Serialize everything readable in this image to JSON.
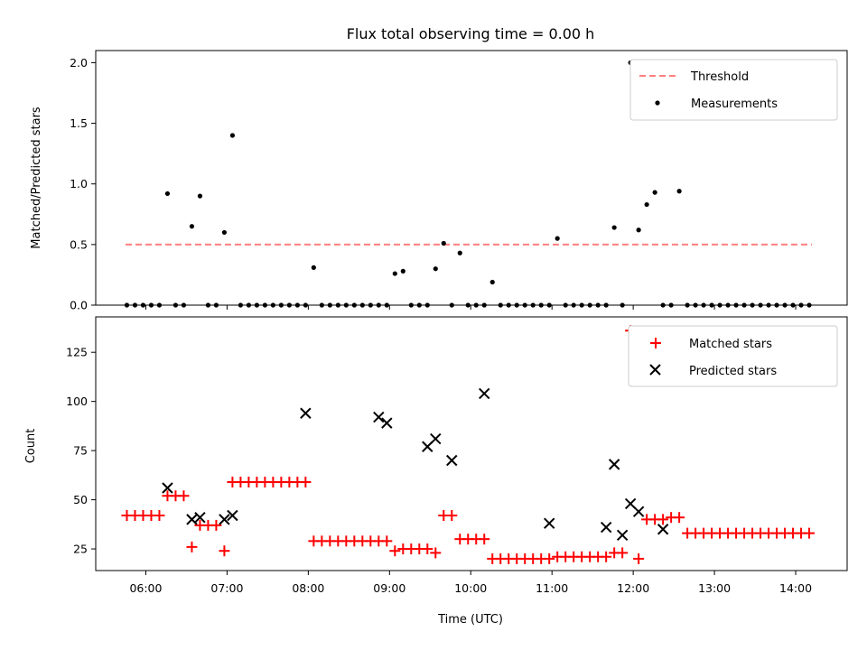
{
  "chart_data": [
    {
      "type": "scatter",
      "title": "Flux total observing time = 0.00 h",
      "xlabel": "",
      "ylabel": "Matched/Predicted stars",
      "ylim": [
        0,
        2.1
      ],
      "yticks": [
        "0.0",
        "0.5",
        "1.0",
        "1.5",
        "2.0"
      ],
      "xticks_shown": false,
      "grid": false,
      "legend_placement": "top-right",
      "threshold": {
        "name": "Threshold",
        "value": 0.5,
        "x_start": "05:45",
        "x_end": "14:12",
        "color": "#ff7f7f"
      },
      "series": [
        {
          "name": "Measurements",
          "color": "#000000",
          "marker": "dot",
          "x": [
            "05:46",
            "05:52",
            "05:58",
            "06:04",
            "06:10",
            "06:16",
            "06:22",
            "06:28",
            "06:34",
            "06:40",
            "06:46",
            "06:52",
            "06:58",
            "07:04",
            "07:10",
            "07:16",
            "07:22",
            "07:28",
            "07:34",
            "07:40",
            "07:46",
            "07:52",
            "07:58",
            "08:04",
            "08:10",
            "08:16",
            "08:22",
            "08:28",
            "08:34",
            "08:40",
            "08:46",
            "08:52",
            "08:58",
            "09:04",
            "09:10",
            "09:16",
            "09:22",
            "09:28",
            "09:34",
            "09:40",
            "09:46",
            "09:52",
            "09:58",
            "10:04",
            "10:10",
            "10:16",
            "10:22",
            "10:28",
            "10:34",
            "10:40",
            "10:46",
            "10:52",
            "10:58",
            "11:04",
            "11:10",
            "11:16",
            "11:22",
            "11:28",
            "11:34",
            "11:40",
            "11:46",
            "11:52",
            "11:58",
            "12:04",
            "12:10",
            "12:16",
            "12:22",
            "12:28",
            "12:34",
            "12:40",
            "12:46",
            "12:52",
            "12:58",
            "13:04",
            "13:10",
            "13:16",
            "13:22",
            "13:28",
            "13:34",
            "13:40",
            "13:46",
            "13:52",
            "13:58",
            "14:04",
            "14:10"
          ],
          "y": [
            0,
            0,
            0,
            0,
            0,
            0.92,
            0,
            0,
            0.65,
            0.9,
            0,
            0,
            0.6,
            1.4,
            0,
            0,
            0,
            0,
            0,
            0,
            0,
            0,
            0,
            0.31,
            0,
            0,
            0,
            0,
            0,
            0,
            0,
            0,
            0,
            0.26,
            0.28,
            0,
            0,
            0,
            0.3,
            0.51,
            0,
            0.43,
            0,
            0,
            0,
            0.19,
            0,
            0,
            0,
            0,
            0,
            0,
            0,
            0.55,
            0,
            0,
            0,
            0,
            0,
            0,
            0.64,
            0,
            2.0,
            0.62,
            0.83,
            0.93,
            0,
            0,
            0.94,
            0,
            0,
            0,
            0,
            0,
            0,
            0,
            0,
            0,
            0,
            0,
            0,
            0,
            0,
            0,
            0
          ]
        }
      ]
    },
    {
      "type": "scatter",
      "title": "",
      "xlabel": "Time (UTC)",
      "ylabel": "Count",
      "ylim": [
        14,
        143
      ],
      "yticks": [
        "25",
        "50",
        "75",
        "100",
        "125"
      ],
      "xticks": [
        "06:00",
        "07:00",
        "08:00",
        "09:00",
        "10:00",
        "11:00",
        "12:00",
        "13:00",
        "14:00"
      ],
      "xlim": [
        "05:23",
        "14:38"
      ],
      "grid": false,
      "legend_placement": "top-right",
      "series": [
        {
          "name": "Matched stars",
          "color": "#ff0000",
          "marker": "plus",
          "x": [
            "05:46",
            "05:52",
            "05:58",
            "06:04",
            "06:10",
            "06:16",
            "06:22",
            "06:28",
            "06:34",
            "06:40",
            "06:46",
            "06:52",
            "06:58",
            "07:04",
            "07:10",
            "07:16",
            "07:22",
            "07:28",
            "07:34",
            "07:40",
            "07:46",
            "07:52",
            "07:58",
            "08:04",
            "08:10",
            "08:16",
            "08:22",
            "08:28",
            "08:34",
            "08:40",
            "08:46",
            "08:52",
            "08:58",
            "09:04",
            "09:10",
            "09:16",
            "09:22",
            "09:28",
            "09:34",
            "09:40",
            "09:46",
            "09:52",
            "09:58",
            "10:04",
            "10:10",
            "10:16",
            "10:22",
            "10:28",
            "10:34",
            "10:40",
            "10:46",
            "10:52",
            "10:58",
            "11:04",
            "11:10",
            "11:16",
            "11:22",
            "11:28",
            "11:34",
            "11:40",
            "11:46",
            "11:52",
            "11:58",
            "12:04",
            "12:10",
            "12:16",
            "12:22",
            "12:28",
            "12:34",
            "12:40",
            "12:46",
            "12:52",
            "12:58",
            "13:04",
            "13:10",
            "13:16",
            "13:22",
            "13:28",
            "13:34",
            "13:40",
            "13:46",
            "13:52",
            "13:58",
            "14:04",
            "14:10"
          ],
          "y": [
            42,
            42,
            42,
            42,
            42,
            52,
            52,
            52,
            26,
            37,
            37,
            37,
            24,
            59,
            59,
            59,
            59,
            59,
            59,
            59,
            59,
            59,
            59,
            29,
            29,
            29,
            29,
            29,
            29,
            29,
            29,
            29,
            29,
            24,
            25,
            25,
            25,
            25,
            23,
            42,
            42,
            30,
            30,
            30,
            30,
            20,
            20,
            20,
            20,
            20,
            20,
            20,
            20,
            21,
            21,
            21,
            21,
            21,
            21,
            21,
            23,
            23,
            136,
            20,
            40,
            40,
            40,
            41,
            41,
            33,
            33,
            33,
            33,
            33,
            33,
            33,
            33,
            33,
            33,
            33,
            33,
            33,
            33,
            33,
            33
          ]
        },
        {
          "name": "Predicted stars",
          "color": "#000000",
          "marker": "x",
          "x": [
            "06:16",
            "06:34",
            "06:40",
            "06:58",
            "07:04",
            "07:58",
            "08:52",
            "08:58",
            "09:28",
            "09:34",
            "09:46",
            "10:10",
            "10:58",
            "11:40",
            "11:46",
            "11:52",
            "11:58",
            "12:04",
            "12:22"
          ],
          "y": [
            56,
            40,
            41,
            40,
            42,
            94,
            92,
            89,
            77,
            81,
            70,
            104,
            38,
            36,
            68,
            32,
            48,
            44,
            35
          ]
        }
      ]
    }
  ]
}
